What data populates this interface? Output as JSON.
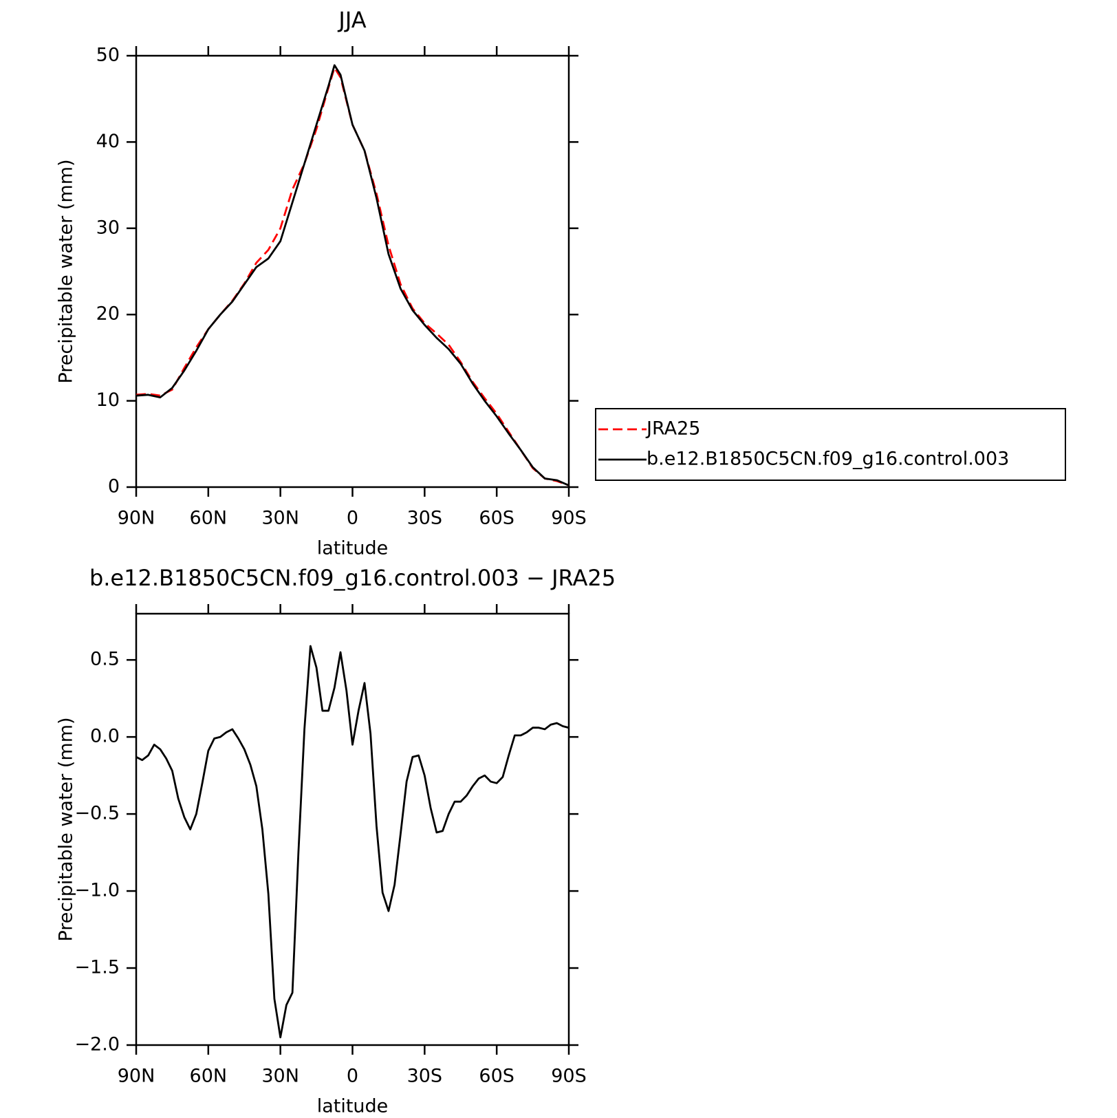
{
  "chart_data": [
    {
      "type": "line",
      "title": "JJA",
      "xlabel": "latitude",
      "ylabel": "Precipitable water (mm)",
      "x": [
        90,
        85,
        80,
        75,
        70,
        65,
        60,
        55,
        50,
        45,
        40,
        35,
        30,
        25,
        20,
        15,
        10,
        7.5,
        5,
        0,
        -5,
        -10,
        -15,
        -20,
        -25,
        -30,
        -35,
        -40,
        -45,
        -50,
        -55,
        -60,
        -65,
        -70,
        -75,
        -80,
        -85,
        -90
      ],
      "series": [
        {
          "name": "JRA25",
          "color": "#ff0000",
          "style": "dashed",
          "values": [
            10.7,
            10.8,
            10.6,
            11.3,
            13.8,
            16.2,
            18.3,
            20.0,
            21.6,
            23.6,
            26.0,
            27.5,
            30.0,
            34.5,
            37.5,
            41.5,
            46.3,
            48.6,
            47.5,
            42,
            39,
            34,
            28,
            23.5,
            20.7,
            19,
            17.8,
            16.5,
            14.5,
            12.2,
            10.3,
            8.5,
            6.4,
            4.3,
            2.2,
            1.0,
            0.7,
            0.2
          ]
        },
        {
          "name": "b.e12.B1850C5CN.f09_g16.control.003",
          "color": "#000000",
          "style": "solid",
          "values": [
            10.6,
            10.7,
            10.4,
            11.5,
            13.5,
            15.8,
            18.3,
            20.0,
            21.5,
            23.5,
            25.5,
            26.5,
            28.5,
            33,
            37.5,
            42,
            46.5,
            48.9,
            47.8,
            42,
            39,
            33.5,
            27,
            23,
            20.5,
            18.8,
            17.3,
            16,
            14.3,
            12,
            10,
            8.2,
            6.2,
            4.3,
            2.3,
            1.0,
            0.8,
            0.2
          ]
        }
      ],
      "xlim": [
        90,
        -90
      ],
      "xticks": [
        {
          "value": 90,
          "label": "90N"
        },
        {
          "value": 60,
          "label": "60N"
        },
        {
          "value": 30,
          "label": "30N"
        },
        0,
        {
          "value": -30,
          "label": "30S"
        },
        {
          "value": -60,
          "label": "60S"
        },
        {
          "value": -90,
          "label": "90S"
        }
      ],
      "ylim": [
        0,
        50
      ],
      "yticks": [
        0,
        10,
        20,
        30,
        40,
        50
      ],
      "legend_position": "right"
    },
    {
      "type": "line",
      "title": "b.e12.B1850C5CN.f09_g16.control.003 − JRA25",
      "xlabel": "latitude",
      "ylabel": "Precipitable water (mm)",
      "x": [
        90,
        87.5,
        85,
        82.5,
        80,
        77.5,
        75,
        72.5,
        70,
        67.5,
        65,
        62.5,
        60,
        57.5,
        55,
        52.5,
        50,
        47.5,
        45,
        42.5,
        40,
        37.5,
        35,
        32.5,
        30,
        27.5,
        25,
        22.5,
        20,
        17.5,
        15,
        12.5,
        10,
        7.5,
        5,
        2.5,
        0,
        -2.5,
        -5,
        -7.5,
        -10,
        -12.5,
        -15,
        -17.5,
        -20,
        -22.5,
        -25,
        -27.5,
        -30,
        -32.5,
        -35,
        -37.5,
        -40,
        -42.5,
        -45,
        -47.5,
        -50,
        -52.5,
        -55,
        -57.5,
        -60,
        -62.5,
        -65,
        -67.5,
        -70,
        -72.5,
        -75,
        -77.5,
        -80,
        -82.5,
        -85,
        -87.5,
        -90
      ],
      "series": [
        {
          "color": "#000000",
          "style": "solid",
          "values": [
            -0.13,
            -0.15,
            -0.12,
            -0.05,
            -0.08,
            -0.14,
            -0.22,
            -0.4,
            -0.52,
            -0.6,
            -0.5,
            -0.3,
            -0.09,
            -0.01,
            0.0,
            0.03,
            0.05,
            -0.01,
            -0.08,
            -0.18,
            -0.32,
            -0.6,
            -1.02,
            -1.7,
            -1.95,
            -1.74,
            -1.66,
            -0.75,
            0.05,
            0.59,
            0.45,
            0.17,
            0.17,
            0.32,
            0.55,
            0.3,
            -0.05,
            0.17,
            0.35,
            0.02,
            -0.58,
            -1.01,
            -1.13,
            -0.96,
            -0.63,
            -0.29,
            -0.13,
            -0.12,
            -0.25,
            -0.46,
            -0.62,
            -0.61,
            -0.5,
            -0.42,
            -0.42,
            -0.38,
            -0.32,
            -0.27,
            -0.25,
            -0.29,
            -0.3,
            -0.26,
            -0.12,
            0.01,
            0.01,
            0.03,
            0.06,
            0.06,
            0.05,
            0.08,
            0.09,
            0.07,
            0.06
          ]
        }
      ],
      "xlim": [
        90,
        -90
      ],
      "xticks": [
        {
          "value": 90,
          "label": "90N"
        },
        {
          "value": 60,
          "label": "60N"
        },
        {
          "value": 30,
          "label": "30N"
        },
        0,
        {
          "value": -30,
          "label": "30S"
        },
        {
          "value": -60,
          "label": "60S"
        },
        {
          "value": -90,
          "label": "90S"
        }
      ],
      "ylim": [
        -2.0,
        0.8
      ],
      "yticks": [
        {
          "value": -2.0,
          "label": "−2.0"
        },
        {
          "value": -1.5,
          "label": "−1.5"
        },
        {
          "value": -1.0,
          "label": "−1.0"
        },
        {
          "value": -0.5,
          "label": "−0.5"
        },
        {
          "value": 0.0,
          "label": "0.0"
        },
        {
          "value": 0.5,
          "label": "0.5"
        }
      ]
    }
  ]
}
